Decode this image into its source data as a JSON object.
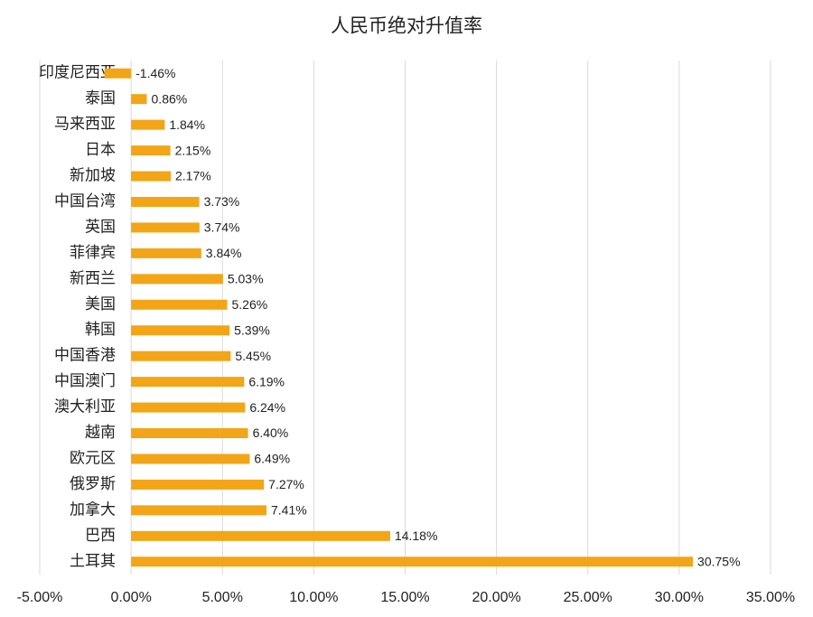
{
  "chart_data": {
    "type": "bar",
    "orientation": "horizontal",
    "title": "人民币绝对升值率",
    "categories": [
      "印度尼西亚",
      "泰国",
      "马来西亚",
      "日本",
      "新加坡",
      "中国台湾",
      "英国",
      "菲律宾",
      "新西兰",
      "美国",
      "韩国",
      "中国香港",
      "中国澳门",
      "澳大利亚",
      "越南",
      "欧元区",
      "俄罗斯",
      "加拿大",
      "巴西",
      "土耳其"
    ],
    "values": [
      -1.46,
      0.86,
      1.84,
      2.15,
      2.17,
      3.73,
      3.74,
      3.84,
      5.03,
      5.26,
      5.39,
      5.45,
      6.19,
      6.24,
      6.4,
      6.49,
      7.27,
      7.41,
      14.18,
      30.75
    ],
    "value_labels": [
      "-1.46%",
      "0.86%",
      "1.84%",
      "2.15%",
      "2.17%",
      "3.73%",
      "3.74%",
      "3.84%",
      "5.03%",
      "5.26%",
      "5.39%",
      "5.45%",
      "6.19%",
      "6.24%",
      "6.40%",
      "6.49%",
      "7.27%",
      "7.41%",
      "14.18%",
      "30.75%"
    ],
    "color": "#f2a516",
    "xlim": [
      -5,
      35
    ],
    "xticks": [
      {
        "value": -5,
        "label": "-5.00%"
      },
      {
        "value": 0,
        "label": "0.00%"
      },
      {
        "value": 5,
        "label": "5.00%"
      },
      {
        "value": 10,
        "label": "10.00%"
      },
      {
        "value": 15,
        "label": "15.00%"
      },
      {
        "value": 20,
        "label": "20.00%"
      },
      {
        "value": 25,
        "label": "25.00%"
      },
      {
        "value": 30,
        "label": "30.00%"
      },
      {
        "value": 35,
        "label": "35.00%"
      }
    ],
    "grid": true
  }
}
